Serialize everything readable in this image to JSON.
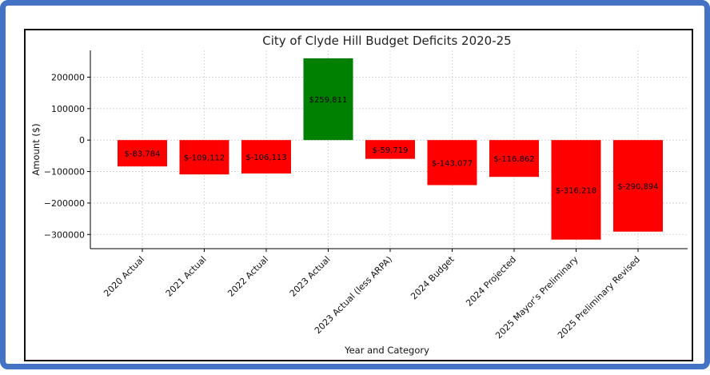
{
  "colors": {
    "frame_border": "#4472c4",
    "negative_bar": "#ff0000",
    "positive_bar": "#008000",
    "grid": "#d0d0d0",
    "axis": "#000000"
  },
  "chart_data": {
    "type": "bar",
    "title": "City of Clyde Hill Budget Deficits 2020-25",
    "xlabel": "Year and Category",
    "ylabel": "Amount ($)",
    "ylim": [
      -345000,
      285000
    ],
    "yticks": [
      200000,
      100000,
      0,
      -100000,
      -200000,
      -300000
    ],
    "ytick_labels": [
      "200000",
      "100000",
      "0",
      "−100000",
      "−200000",
      "−300000"
    ],
    "grid": true,
    "categories": [
      "2020 Actual",
      "2021 Actual",
      "2022 Actual",
      "2023 Actual",
      "2023 Actual (less ARPA)",
      "2024 Budget",
      "2024 Projected",
      "2025 Mayor’s Preliminary",
      "2025 Preliminary Revised"
    ],
    "values": [
      -83784,
      -109112,
      -106113,
      259811,
      -59719,
      -143077,
      -116862,
      -316218,
      -290894
    ],
    "data_labels": [
      "$-83,784",
      "$-109,112",
      "$-106,113",
      "$259,811",
      "$-59,719",
      "$-143,077",
      "$-116,862",
      "$-316,218",
      "$-290,894"
    ]
  }
}
